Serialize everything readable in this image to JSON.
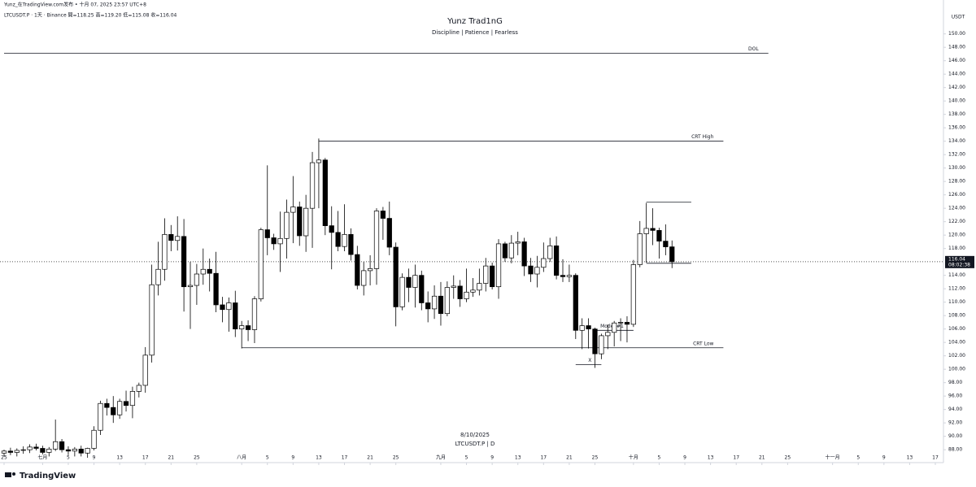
{
  "chart_data": {
    "type": "candlestick",
    "top_line": "Yunz_在TradingView.com发布 • 十月 07, 2025 23:57 UTC+8",
    "symbol_line": "LTCUSDT.P · 1天 · Binance  開=118.25  高=119.20  低=115.08  收=116.04",
    "title": "Yunz Trad1nG",
    "subtitle": "Discipline | Patience | Fearless",
    "currency": "USDT",
    "watermark_date": "8/10/2025",
    "watermark_symbol": "LTCUSDT.P | D",
    "brand": "TradingView",
    "last_price": 116.04,
    "countdown": "08:02:38",
    "up_color": "#ffffff",
    "down_color": "#000000",
    "xlim": [
      "2025-06-25",
      "2025-11-17"
    ],
    "ylim": [
      86.2,
      153.6
    ],
    "x": [
      "2025-06-25",
      "2025-06-26",
      "2025-06-27",
      "2025-06-28",
      "2025-06-29",
      "2025-06-30",
      "2025-07-01",
      "2025-07-02",
      "2025-07-03",
      "2025-07-04",
      "2025-07-05",
      "2025-07-06",
      "2025-07-07",
      "2025-07-08",
      "2025-07-09",
      "2025-07-10",
      "2025-07-11",
      "2025-07-12",
      "2025-07-13",
      "2025-07-14",
      "2025-07-15",
      "2025-07-16",
      "2025-07-17",
      "2025-07-18",
      "2025-07-19",
      "2025-07-20",
      "2025-07-21",
      "2025-07-22",
      "2025-07-23",
      "2025-07-24",
      "2025-07-25",
      "2025-07-26",
      "2025-07-27",
      "2025-07-28",
      "2025-07-29",
      "2025-07-30",
      "2025-07-31",
      "2025-08-01",
      "2025-08-02",
      "2025-08-03",
      "2025-08-04",
      "2025-08-05",
      "2025-08-06",
      "2025-08-07",
      "2025-08-08",
      "2025-08-09",
      "2025-08-10",
      "2025-08-11",
      "2025-08-12",
      "2025-08-13",
      "2025-08-14",
      "2025-08-15",
      "2025-08-16",
      "2025-08-17",
      "2025-08-18",
      "2025-08-19",
      "2025-08-20",
      "2025-08-21",
      "2025-08-22",
      "2025-08-23",
      "2025-08-24",
      "2025-08-25",
      "2025-08-26",
      "2025-08-27",
      "2025-08-28",
      "2025-08-29",
      "2025-08-30",
      "2025-08-31",
      "2025-09-01",
      "2025-09-02",
      "2025-09-03",
      "2025-09-04",
      "2025-09-05",
      "2025-09-06",
      "2025-09-07",
      "2025-09-08",
      "2025-09-09",
      "2025-09-10",
      "2025-09-11",
      "2025-09-12",
      "2025-09-13",
      "2025-09-14",
      "2025-09-15",
      "2025-09-16",
      "2025-09-17",
      "2025-09-18",
      "2025-09-19",
      "2025-09-20",
      "2025-09-21",
      "2025-09-22",
      "2025-09-23",
      "2025-09-24",
      "2025-09-25",
      "2025-09-26",
      "2025-09-27",
      "2025-09-28",
      "2025-09-29",
      "2025-09-30",
      "2025-10-01",
      "2025-10-02",
      "2025-10-03",
      "2025-10-04",
      "2025-10-05",
      "2025-10-06",
      "2025-10-07"
    ],
    "open": [
      87.5,
      87.8,
      87.6,
      87.9,
      88,
      88.4,
      88.2,
      87.6,
      88.1,
      89.2,
      88,
      87.8,
      88.1,
      87.5,
      88.2,
      90.9,
      94.9,
      94.3,
      93.2,
      95.2,
      94.6,
      96.7,
      97.6,
      102.1,
      112.6,
      114.9,
      120.1,
      119.2,
      119.8,
      112.3,
      112.5,
      114.2,
      114.9,
      114.3,
      109.6,
      108.9,
      109.9,
      106,
      106.5,
      105.9,
      110.5,
      120.8,
      119.6,
      118.7,
      119.5,
      123.4,
      124.2,
      119.9,
      124,
      130.8,
      131.2,
      121.4,
      120.4,
      118.3,
      120.1,
      117.1,
      112.5,
      114.7,
      115,
      123.6,
      122.5,
      118.2,
      109.3,
      113.7,
      112.2,
      114,
      109.9,
      109,
      110.9,
      108.3,
      112.2,
      112.4,
      110.5,
      111.5,
      111.8,
      112.8,
      115.4,
      112.3,
      118.7,
      116.6,
      118.8,
      119,
      115.4,
      114.2,
      115.2,
      116.5,
      118.4,
      114,
      113.8,
      114,
      105.8,
      106.5,
      106,
      102.3,
      105,
      105.5,
      106.9,
      107,
      106.7,
      115.6,
      120.2,
      121,
      120.7,
      119.1,
      118.25
    ],
    "high": [
      88,
      88.3,
      88.2,
      88.5,
      88.8,
      88.9,
      88.6,
      88.4,
      92.5,
      89.6,
      88.5,
      88.4,
      88.6,
      88.3,
      91.5,
      95.3,
      95.6,
      96,
      95.6,
      96.8,
      97.4,
      98,
      103.3,
      115.6,
      119,
      122.5,
      121.5,
      122.8,
      122.4,
      116,
      115.7,
      118,
      116.5,
      117.5,
      110.8,
      110.7,
      111.7,
      107.2,
      107.3,
      110.9,
      121.1,
      130.4,
      120.2,
      123.5,
      125.3,
      128.8,
      125,
      126,
      132.4,
      134.4,
      131.5,
      124.3,
      123.6,
      124.6,
      121,
      118.4,
      116,
      117,
      124,
      124.2,
      125,
      118.9,
      114.3,
      115,
      115.6,
      114.7,
      111.6,
      112.5,
      113,
      113.1,
      114,
      113.3,
      115,
      113.6,
      115,
      116.6,
      115.9,
      119.4,
      119,
      120,
      120.5,
      119.6,
      116.6,
      116.9,
      118.9,
      119.6,
      119.8,
      116.4,
      115.6,
      114.3,
      107.6,
      107.6,
      106.2,
      105.3,
      106.7,
      107.2,
      107.6,
      107.9,
      116.3,
      122.1,
      124.8,
      124,
      121.1,
      121.6,
      119.2
    ],
    "low": [
      87,
      87.2,
      87,
      87.4,
      87.5,
      87.9,
      87.3,
      87,
      87.8,
      87.6,
      87.2,
      87,
      87,
      86.8,
      87.9,
      90.2,
      93.1,
      92,
      92.6,
      93.7,
      92.7,
      95.8,
      96.5,
      101,
      111,
      113.2,
      117.6,
      117.7,
      108.6,
      106,
      109.6,
      112.6,
      111.6,
      108.5,
      107,
      105.6,
      104.8,
      103.1,
      104.2,
      103.9,
      110.1,
      117,
      117.8,
      114.5,
      116.5,
      118.8,
      118.4,
      117.5,
      118.1,
      124,
      120,
      114.9,
      117.6,
      117.6,
      116.2,
      111.9,
      111,
      112.5,
      112.6,
      119.3,
      117,
      106.4,
      108.8,
      110,
      109.2,
      108.8,
      107,
      107.5,
      106.5,
      107.9,
      110.5,
      109.3,
      110,
      110.8,
      111,
      111.6,
      111.9,
      110.5,
      116,
      115.8,
      117,
      113.9,
      113,
      112.2,
      114.5,
      116,
      113.4,
      113,
      113,
      104.5,
      103,
      103.1,
      100.2,
      101.5,
      103,
      103.4,
      104.2,
      104,
      106.3,
      115.2,
      115.9,
      118.5,
      116.5,
      117,
      115.08
    ],
    "close": [
      87.8,
      87.6,
      87.9,
      88,
      88.4,
      88.2,
      87.6,
      88.1,
      89.2,
      88,
      87.8,
      88.1,
      87.5,
      88.2,
      90.9,
      94.9,
      94.3,
      93.2,
      95.2,
      94.6,
      96.7,
      97.6,
      102.1,
      112.6,
      114.9,
      120.1,
      119.2,
      119.8,
      112.3,
      112.5,
      114.2,
      114.9,
      114.3,
      109.6,
      108.9,
      109.9,
      106,
      106.5,
      105.9,
      110.5,
      120.8,
      119.6,
      118.7,
      119.5,
      123.4,
      124.2,
      119.9,
      124,
      130.8,
      131.2,
      121.4,
      120.4,
      118.3,
      120.1,
      117.1,
      112.5,
      114.7,
      115,
      123.6,
      122.5,
      118.2,
      109.3,
      113.7,
      112.2,
      114,
      109.9,
      109,
      110.9,
      108.3,
      112.2,
      112.4,
      110.5,
      111.5,
      111.8,
      112.8,
      115.4,
      112.3,
      118.7,
      116.6,
      118.8,
      119,
      115.4,
      114.2,
      115.2,
      116.5,
      118.4,
      114,
      113.8,
      114,
      105.8,
      106.5,
      106,
      102.3,
      105,
      105.5,
      106.9,
      107,
      106.7,
      115.6,
      120.2,
      121,
      120.7,
      119.1,
      118.25,
      116.04
    ],
    "xticks": [
      {
        "value": "2025-06-25",
        "label": "25"
      },
      {
        "value": "2025-07-01",
        "label": "七月"
      },
      {
        "value": "2025-07-05",
        "label": "5"
      },
      {
        "value": "2025-07-09",
        "label": "9"
      },
      {
        "value": "2025-07-13",
        "label": "13"
      },
      {
        "value": "2025-07-17",
        "label": "17"
      },
      {
        "value": "2025-07-21",
        "label": "21"
      },
      {
        "value": "2025-07-25",
        "label": "25"
      },
      {
        "value": "2025-08-01",
        "label": "八月"
      },
      {
        "value": "2025-08-05",
        "label": "5"
      },
      {
        "value": "2025-08-09",
        "label": "9"
      },
      {
        "value": "2025-08-13",
        "label": "13"
      },
      {
        "value": "2025-08-17",
        "label": "17"
      },
      {
        "value": "2025-08-21",
        "label": "21"
      },
      {
        "value": "2025-08-25",
        "label": "25"
      },
      {
        "value": "2025-09-01",
        "label": "九月"
      },
      {
        "value": "2025-09-05",
        "label": "5"
      },
      {
        "value": "2025-09-09",
        "label": "9"
      },
      {
        "value": "2025-09-13",
        "label": "13"
      },
      {
        "value": "2025-09-17",
        "label": "17"
      },
      {
        "value": "2025-09-21",
        "label": "21"
      },
      {
        "value": "2025-09-25",
        "label": "25"
      },
      {
        "value": "2025-10-01",
        "label": "十月"
      },
      {
        "value": "2025-10-05",
        "label": "5"
      },
      {
        "value": "2025-10-09",
        "label": "9"
      },
      {
        "value": "2025-10-13",
        "label": "13"
      },
      {
        "value": "2025-10-17",
        "label": "17"
      },
      {
        "value": "2025-10-21",
        "label": "21"
      },
      {
        "value": "2025-10-25",
        "label": "25"
      },
      {
        "value": "2025-11-01",
        "label": "十一月"
      },
      {
        "value": "2025-11-05",
        "label": "5"
      },
      {
        "value": "2025-11-09",
        "label": "9"
      },
      {
        "value": "2025-11-13",
        "label": "13"
      },
      {
        "value": "2025-11-17",
        "label": "17"
      }
    ],
    "yticks": [
      {
        "value": 88,
        "label": "88.00"
      },
      {
        "value": 90,
        "label": "90.00"
      },
      {
        "value": 92,
        "label": "92.00"
      },
      {
        "value": 94,
        "label": "94.00"
      },
      {
        "value": 96,
        "label": "96.00"
      },
      {
        "value": 98,
        "label": "98.00"
      },
      {
        "value": 100,
        "label": "100.00"
      },
      {
        "value": 102,
        "label": "102.00"
      },
      {
        "value": 104,
        "label": "104.00"
      },
      {
        "value": 106,
        "label": "106.00"
      },
      {
        "value": 108,
        "label": "108.00"
      },
      {
        "value": 110,
        "label": "110.00"
      },
      {
        "value": 112,
        "label": "112.00"
      },
      {
        "value": 114,
        "label": "114.00"
      },
      {
        "value": 118,
        "label": "118.00"
      },
      {
        "value": 120,
        "label": "120.00"
      },
      {
        "value": 122,
        "label": "122.00"
      },
      {
        "value": 124,
        "label": "124.00"
      },
      {
        "value": 126,
        "label": "126.00"
      },
      {
        "value": 128,
        "label": "128.00"
      },
      {
        "value": 130,
        "label": "130.00"
      },
      {
        "value": 132,
        "label": "132.00"
      },
      {
        "value": 134,
        "label": "134.00"
      },
      {
        "value": 136,
        "label": "136.00"
      },
      {
        "value": 138,
        "label": "138.00"
      },
      {
        "value": 140,
        "label": "140.00"
      },
      {
        "value": 142,
        "label": "142.00"
      },
      {
        "value": 144,
        "label": "144.00"
      },
      {
        "value": 146,
        "label": "146.00"
      },
      {
        "value": 148,
        "label": "148.00"
      },
      {
        "value": 150,
        "label": "150.00"
      }
    ],
    "annotations": [
      {
        "text": "DOL",
        "price": 147.1,
        "from": "2025-06-25",
        "to": "2025-10-22"
      },
      {
        "text": "CRT High",
        "price": 134,
        "from": "2025-08-13",
        "to": "2025-10-15"
      },
      {
        "text": "CRT Low",
        "price": 103.2,
        "from": "2025-08-01",
        "to": "2025-10-15"
      },
      {
        "text": "Model #1",
        "price": 105.8,
        "from": "2025-09-25",
        "to": "2025-10-01"
      },
      {
        "text": "X",
        "price": 100.7,
        "from": "2025-09-22",
        "to": "2025-09-26"
      }
    ],
    "levels": [
      {
        "price": 124.9,
        "from": "2025-10-03",
        "to": "2025-10-10"
      },
      {
        "price": 115.8,
        "from": "2025-10-03",
        "to": "2025-10-10"
      }
    ]
  }
}
